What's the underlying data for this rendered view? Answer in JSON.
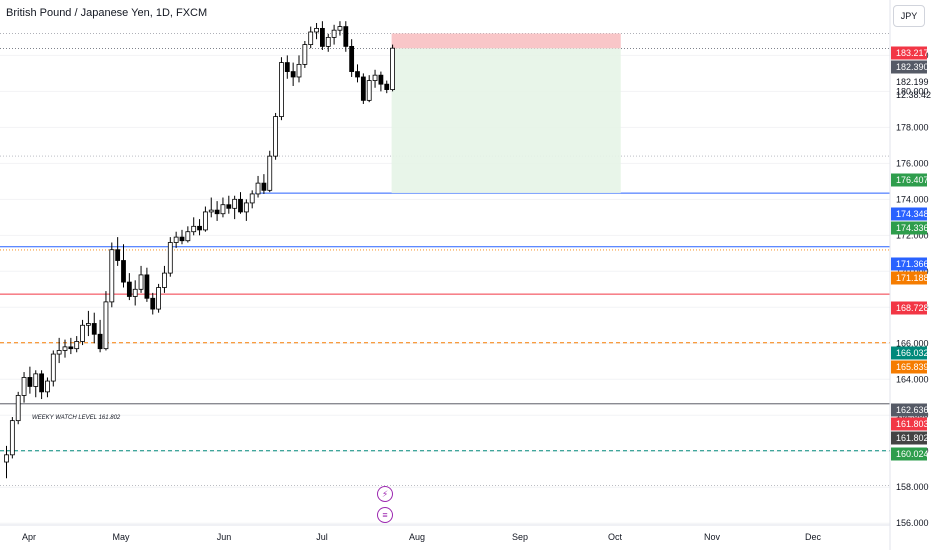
{
  "header": {
    "symbol_title": "British Pound / Japanese Yen, 1D, FXCM",
    "currency_button": "JPY"
  },
  "annotations": {
    "weekly_level_note": "WEEKY WATCH LEVEL 161.802"
  },
  "toolbar_icons": [
    "lightning-icon",
    "news-icon"
  ],
  "chart_data": {
    "type": "candlestick",
    "title": "British Pound / Japanese Yen, 1D, FXCM",
    "x_ticks": [
      "Apr",
      "May",
      "Jun",
      "Jul",
      "Aug",
      "Sep",
      "Oct",
      "Nov",
      "Dec"
    ],
    "y_ticks": [
      "156.000",
      "158.000",
      "160.000",
      "162.000",
      "164.000",
      "166.000",
      "168.000",
      "170.000",
      "172.000",
      "174.000",
      "176.000",
      "178.000",
      "180.000",
      "182.000"
    ],
    "ylim": [
      155.9,
      184.3
    ],
    "candles": [
      {
        "o": 159.4,
        "h": 160.3,
        "l": 158.5,
        "c": 159.8
      },
      {
        "o": 159.8,
        "h": 161.9,
        "l": 159.6,
        "c": 161.7
      },
      {
        "o": 161.7,
        "h": 163.3,
        "l": 161.5,
        "c": 163.1
      },
      {
        "o": 163.1,
        "h": 164.4,
        "l": 162.7,
        "c": 164.1
      },
      {
        "o": 164.1,
        "h": 164.7,
        "l": 163.2,
        "c": 163.6
      },
      {
        "o": 163.6,
        "h": 164.5,
        "l": 163.0,
        "c": 164.3
      },
      {
        "o": 164.3,
        "h": 164.5,
        "l": 162.9,
        "c": 163.3
      },
      {
        "o": 163.3,
        "h": 164.1,
        "l": 163.0,
        "c": 163.9
      },
      {
        "o": 163.9,
        "h": 165.6,
        "l": 163.6,
        "c": 165.4
      },
      {
        "o": 165.4,
        "h": 166.3,
        "l": 164.9,
        "c": 165.6
      },
      {
        "o": 165.6,
        "h": 166.2,
        "l": 165.2,
        "c": 165.8
      },
      {
        "o": 165.8,
        "h": 166.3,
        "l": 165.4,
        "c": 165.7
      },
      {
        "o": 165.7,
        "h": 166.4,
        "l": 165.5,
        "c": 166.1
      },
      {
        "o": 166.1,
        "h": 167.3,
        "l": 165.9,
        "c": 167.0
      },
      {
        "o": 167.0,
        "h": 167.8,
        "l": 166.4,
        "c": 167.1
      },
      {
        "o": 167.1,
        "h": 167.7,
        "l": 166.0,
        "c": 166.5
      },
      {
        "o": 166.5,
        "h": 167.3,
        "l": 165.5,
        "c": 165.7
      },
      {
        "o": 165.7,
        "h": 168.9,
        "l": 165.6,
        "c": 168.3
      },
      {
        "o": 168.3,
        "h": 171.6,
        "l": 168.0,
        "c": 171.2
      },
      {
        "o": 171.2,
        "h": 171.9,
        "l": 170.3,
        "c": 170.6
      },
      {
        "o": 170.6,
        "h": 171.5,
        "l": 169.1,
        "c": 169.4
      },
      {
        "o": 169.4,
        "h": 169.9,
        "l": 168.4,
        "c": 168.6
      },
      {
        "o": 168.6,
        "h": 169.5,
        "l": 168.1,
        "c": 169.0
      },
      {
        "o": 169.0,
        "h": 170.3,
        "l": 168.8,
        "c": 169.8
      },
      {
        "o": 169.8,
        "h": 170.2,
        "l": 168.3,
        "c": 168.5
      },
      {
        "o": 168.5,
        "h": 168.8,
        "l": 167.6,
        "c": 167.9
      },
      {
        "o": 167.9,
        "h": 169.3,
        "l": 167.7,
        "c": 169.1
      },
      {
        "o": 169.1,
        "h": 170.3,
        "l": 168.8,
        "c": 169.9
      },
      {
        "o": 169.9,
        "h": 171.9,
        "l": 169.7,
        "c": 171.6
      },
      {
        "o": 171.6,
        "h": 172.2,
        "l": 171.3,
        "c": 171.9
      },
      {
        "o": 171.9,
        "h": 172.3,
        "l": 171.5,
        "c": 171.7
      },
      {
        "o": 171.7,
        "h": 172.5,
        "l": 171.6,
        "c": 172.2
      },
      {
        "o": 172.2,
        "h": 173.0,
        "l": 172.0,
        "c": 172.5
      },
      {
        "o": 172.5,
        "h": 172.9,
        "l": 172.0,
        "c": 172.3
      },
      {
        "o": 172.3,
        "h": 173.6,
        "l": 172.2,
        "c": 173.3
      },
      {
        "o": 173.3,
        "h": 174.1,
        "l": 173.0,
        "c": 173.4
      },
      {
        "o": 173.4,
        "h": 173.9,
        "l": 172.8,
        "c": 173.2
      },
      {
        "o": 173.2,
        "h": 174.1,
        "l": 173.0,
        "c": 173.7
      },
      {
        "o": 173.7,
        "h": 174.2,
        "l": 173.2,
        "c": 173.5
      },
      {
        "o": 173.5,
        "h": 174.2,
        "l": 172.9,
        "c": 174.0
      },
      {
        "o": 174.0,
        "h": 174.4,
        "l": 173.2,
        "c": 173.3
      },
      {
        "o": 173.3,
        "h": 174.0,
        "l": 172.8,
        "c": 173.8
      },
      {
        "o": 173.8,
        "h": 174.5,
        "l": 173.5,
        "c": 174.3
      },
      {
        "o": 174.3,
        "h": 175.3,
        "l": 174.1,
        "c": 174.9
      },
      {
        "o": 174.9,
        "h": 175.4,
        "l": 174.3,
        "c": 174.5
      },
      {
        "o": 174.5,
        "h": 176.7,
        "l": 174.4,
        "c": 176.4
      },
      {
        "o": 176.4,
        "h": 178.8,
        "l": 176.2,
        "c": 178.6
      },
      {
        "o": 178.6,
        "h": 181.9,
        "l": 178.4,
        "c": 181.6
      },
      {
        "o": 181.6,
        "h": 182.0,
        "l": 180.7,
        "c": 181.1
      },
      {
        "o": 181.1,
        "h": 181.6,
        "l": 180.3,
        "c": 180.8
      },
      {
        "o": 180.8,
        "h": 182.0,
        "l": 180.5,
        "c": 181.5
      },
      {
        "o": 181.5,
        "h": 182.8,
        "l": 181.3,
        "c": 182.6
      },
      {
        "o": 182.6,
        "h": 183.6,
        "l": 182.4,
        "c": 183.3
      },
      {
        "o": 183.3,
        "h": 183.8,
        "l": 182.9,
        "c": 183.5
      },
      {
        "o": 183.5,
        "h": 183.9,
        "l": 182.3,
        "c": 182.5
      },
      {
        "o": 182.5,
        "h": 183.2,
        "l": 182.2,
        "c": 183.0
      },
      {
        "o": 183.0,
        "h": 183.7,
        "l": 182.6,
        "c": 183.4
      },
      {
        "o": 183.4,
        "h": 183.9,
        "l": 183.1,
        "c": 183.6
      },
      {
        "o": 183.6,
        "h": 183.9,
        "l": 182.2,
        "c": 182.5
      },
      {
        "o": 182.5,
        "h": 182.9,
        "l": 180.8,
        "c": 181.1
      },
      {
        "o": 181.1,
        "h": 181.5,
        "l": 180.5,
        "c": 180.8
      },
      {
        "o": 180.8,
        "h": 181.0,
        "l": 179.3,
        "c": 179.5
      },
      {
        "o": 179.5,
        "h": 180.9,
        "l": 179.4,
        "c": 180.6
      },
      {
        "o": 180.6,
        "h": 181.2,
        "l": 180.2,
        "c": 180.9
      },
      {
        "o": 180.9,
        "h": 181.1,
        "l": 180.0,
        "c": 180.4
      },
      {
        "o": 180.4,
        "h": 180.6,
        "l": 179.9,
        "c": 180.1
      },
      {
        "o": 180.1,
        "h": 182.6,
        "l": 180.0,
        "c": 182.4
      }
    ],
    "position_box": {
      "entry": 182.39,
      "stop": 183.217,
      "target": 174.348,
      "start_index": 66,
      "end_index": 105
    },
    "price_tags": [
      {
        "value": "183.217",
        "color": "#f23645"
      },
      {
        "value": "182.390",
        "color": "#555a66"
      },
      {
        "value": "182.199",
        "color": "#ffffff"
      },
      {
        "value": "12:38:42",
        "color": "#ffffff"
      },
      {
        "value": "176.407",
        "color": "#2e9d4c"
      },
      {
        "value": "174.348",
        "color": "#2962ff"
      },
      {
        "value": "174.336",
        "color": "#2e9d4c"
      },
      {
        "value": "171.366",
        "color": "#2962ff"
      },
      {
        "value": "171.188",
        "color": "#f57c00"
      },
      {
        "value": "168.728",
        "color": "#f23645"
      },
      {
        "value": "166.032",
        "color": "#00897b"
      },
      {
        "value": "165.839",
        "color": "#f57c00"
      },
      {
        "value": "162.636",
        "color": "#555a66"
      },
      {
        "value": "161.803",
        "color": "#f23645"
      },
      {
        "value": "161.802",
        "color": "#444444"
      },
      {
        "value": "160.024",
        "color": "#2e9d4c"
      }
    ],
    "horizontal_lines": [
      {
        "price": 183.217,
        "color": "#9598a1",
        "style": "dotted",
        "width": 0.8
      },
      {
        "price": 182.39,
        "color": "#555a66",
        "style": "dotted",
        "width": 0.8
      },
      {
        "price": 176.407,
        "color": "#9598a1",
        "style": "dotted",
        "width": 0.6
      },
      {
        "price": 174.348,
        "color": "#2962ff",
        "style": "solid",
        "width": 1
      },
      {
        "price": 171.366,
        "color": "#2962ff",
        "style": "solid",
        "width": 1
      },
      {
        "price": 171.188,
        "color": "#f57c00",
        "style": "dotted",
        "width": 0.8
      },
      {
        "price": 168.728,
        "color": "#f23645",
        "style": "solid",
        "width": 1
      },
      {
        "price": 166.032,
        "color": "#f57c00",
        "style": "dashed",
        "width": 1
      },
      {
        "price": 162.636,
        "color": "#434651",
        "style": "solid",
        "width": 0.8
      },
      {
        "price": 160.024,
        "color": "#00897b",
        "style": "dashed",
        "width": 1
      },
      {
        "price": 158.1,
        "color": "#9598a1",
        "style": "dotted",
        "width": 0.6
      }
    ]
  }
}
